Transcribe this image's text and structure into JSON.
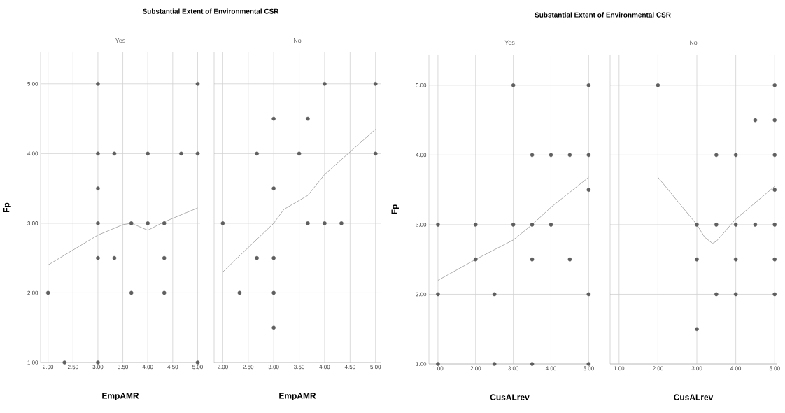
{
  "chart_data": [
    {
      "type": "scatter",
      "title": "Substantial Extent of Environmental CSR",
      "subtitle": "Yes",
      "xlabel": "EmpAMR",
      "ylabel": "Fp",
      "grid": true,
      "xlim": [
        1.85,
        5.05
      ],
      "ylim": [
        1,
        5.45
      ],
      "xticks": [
        {
          "value": 2,
          "label": "2.00"
        },
        {
          "value": 2.5,
          "label": "2.50"
        },
        {
          "value": 3,
          "label": "3.00"
        },
        {
          "value": 3.5,
          "label": "3.50"
        },
        {
          "value": 4,
          "label": "4.00"
        },
        {
          "value": 4.5,
          "label": "4.50"
        },
        {
          "value": 5,
          "label": "5.00"
        }
      ],
      "yticks": [
        {
          "value": 1,
          "label": "1.00"
        },
        {
          "value": 2,
          "label": "2.00"
        },
        {
          "value": 3,
          "label": "3.00"
        },
        {
          "value": 4,
          "label": "4.00"
        },
        {
          "value": 5,
          "label": "5.00"
        }
      ],
      "series": [
        {
          "marker": "circle",
          "color": "#5f5f5f",
          "x": [
            2,
            2.33,
            3,
            3,
            3,
            3,
            3,
            3,
            3.33,
            3.33,
            3.67,
            3.67,
            4,
            4,
            4.33,
            4.33,
            4.33,
            4.67,
            5,
            5,
            5
          ],
          "values": [
            2,
            1,
            5,
            4,
            3.5,
            3,
            2.5,
            1,
            4,
            2.5,
            3,
            2,
            4,
            3,
            3,
            2.5,
            2,
            4,
            5,
            4,
            1
          ]
        },
        {
          "type": "line",
          "marker": "none",
          "line_style": "solid",
          "color": "#a6a6a6",
          "x": [
            2,
            3,
            3.5,
            3.67,
            4,
            4.33,
            5
          ],
          "values": [
            2.4,
            2.83,
            2.98,
            3.0,
            2.9,
            3.02,
            3.22
          ]
        }
      ]
    },
    {
      "type": "scatter",
      "subtitle": "No",
      "xlabel": "EmpAMR",
      "grid": true,
      "tick_labels": "x",
      "xlim": [
        1.83,
        5.1
      ],
      "ylim": [
        1,
        5.45
      ],
      "xticks": [
        {
          "value": 2,
          "label": "2.00"
        },
        {
          "value": 2.5,
          "label": "2.50"
        },
        {
          "value": 3,
          "label": "3.00"
        },
        {
          "value": 3.5,
          "label": "3.50"
        },
        {
          "value": 4,
          "label": "4.00"
        },
        {
          "value": 4.5,
          "label": "4.50"
        },
        {
          "value": 5,
          "label": "5.00"
        }
      ],
      "yticks": [
        {
          "value": 1,
          "label": null
        },
        {
          "value": 2,
          "label": null
        },
        {
          "value": 3,
          "label": null
        },
        {
          "value": 4,
          "label": null
        },
        {
          "value": 5,
          "label": null
        }
      ],
      "series": [
        {
          "marker": "circle",
          "color": "#5f5f5f",
          "x": [
            2,
            2.33,
            2.67,
            2.67,
            3,
            3,
            3,
            3,
            3,
            3.5,
            3.67,
            3.67,
            4,
            4,
            4.33,
            5,
            5
          ],
          "values": [
            3,
            2,
            4,
            2.5,
            4.5,
            3.5,
            2.5,
            2,
            1.5,
            4,
            4.5,
            3,
            5,
            3,
            3,
            5,
            4
          ]
        },
        {
          "type": "line",
          "marker": "none",
          "line_style": "solid",
          "color": "#a6a6a6",
          "x": [
            2,
            3,
            3.2,
            3.67,
            4,
            5
          ],
          "values": [
            2.3,
            3.0,
            3.2,
            3.4,
            3.7,
            4.35
          ]
        }
      ]
    },
    {
      "type": "scatter",
      "title": "Substantial Extent of Environmental CSR",
      "subtitle": "Yes",
      "xlabel": "CusALrev",
      "ylabel": "Fp",
      "grid": true,
      "xlim": [
        0.76,
        5.05
      ],
      "ylim": [
        1,
        5.44
      ],
      "xticks": [
        {
          "value": 1,
          "label": "1.00"
        },
        {
          "value": 2,
          "label": "2.00"
        },
        {
          "value": 3,
          "label": "3.00"
        },
        {
          "value": 4,
          "label": "4.00"
        },
        {
          "value": 5,
          "label": "5.00"
        }
      ],
      "yticks": [
        {
          "value": 1,
          "label": "1.00"
        },
        {
          "value": 2,
          "label": "2.00"
        },
        {
          "value": 3,
          "label": "3.00"
        },
        {
          "value": 4,
          "label": "4.00"
        },
        {
          "value": 5,
          "label": "5.00"
        }
      ],
      "series": [
        {
          "marker": "circle",
          "color": "#5f5f5f",
          "x": [
            1,
            1,
            1,
            2,
            2,
            2.5,
            2.5,
            3,
            3,
            3.5,
            3.5,
            3.5,
            3.5,
            4,
            4,
            4.5,
            4.5,
            5,
            5,
            5,
            5,
            5
          ],
          "values": [
            3,
            2,
            1,
            3,
            2.5,
            2,
            1,
            5,
            3,
            4,
            3,
            2.5,
            1,
            4,
            3,
            4,
            2.5,
            5,
            4,
            3.5,
            2,
            1
          ]
        },
        {
          "type": "line",
          "marker": "none",
          "line_style": "solid",
          "color": "#a6a6a6",
          "x": [
            1,
            2,
            3,
            3.5,
            4,
            5
          ],
          "values": [
            2.2,
            2.5,
            2.78,
            3.0,
            3.25,
            3.68
          ]
        }
      ]
    },
    {
      "type": "scatter",
      "subtitle": "No",
      "xlabel": "CusALrev",
      "grid": true,
      "tick_labels": "x",
      "xlim": [
        0.77,
        5.05
      ],
      "ylim": [
        1,
        5.44
      ],
      "xticks": [
        {
          "value": 1,
          "label": "1.00"
        },
        {
          "value": 2,
          "label": "2.00"
        },
        {
          "value": 3,
          "label": "3.00"
        },
        {
          "value": 4,
          "label": "4.00"
        },
        {
          "value": 5,
          "label": "5.00"
        }
      ],
      "yticks": [
        {
          "value": 1,
          "label": null
        },
        {
          "value": 2,
          "label": null
        },
        {
          "value": 3,
          "label": null
        },
        {
          "value": 4,
          "label": null
        },
        {
          "value": 5,
          "label": null
        }
      ],
      "series": [
        {
          "marker": "circle",
          "color": "#5f5f5f",
          "x": [
            2,
            3,
            3,
            3,
            3.5,
            3.5,
            3.5,
            4,
            4,
            4,
            4,
            4.5,
            4.5,
            5,
            5,
            5,
            5,
            5,
            5,
            5
          ],
          "values": [
            5,
            3,
            2.5,
            1.5,
            4,
            3,
            2,
            4,
            3,
            2.5,
            2,
            4.5,
            3,
            5,
            4.5,
            4,
            3.5,
            3,
            2.5,
            2
          ]
        },
        {
          "type": "line",
          "marker": "none",
          "line_style": "solid",
          "color": "#a6a6a6",
          "x": [
            2,
            3,
            3.2,
            3.4,
            3.5,
            4,
            5
          ],
          "values": [
            3.68,
            3.0,
            2.82,
            2.73,
            2.76,
            3.08,
            3.55
          ]
        }
      ]
    }
  ]
}
